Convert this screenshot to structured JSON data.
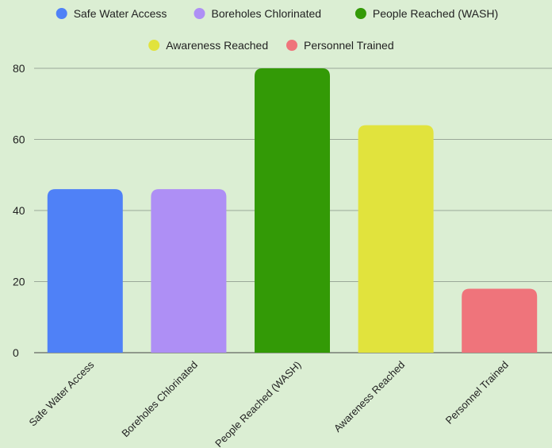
{
  "chart_data": {
    "type": "bar",
    "categories": [
      "Safe Water Access",
      "Boreholes Chlorinated",
      "People Reached (WASH)",
      "Awareness Reached",
      "Personnel Trained"
    ],
    "values": [
      46,
      46,
      80,
      64,
      18
    ],
    "colors": [
      "#4f81f7",
      "#ae8ff5",
      "#339a06",
      "#e1e33d",
      "#ef747b"
    ],
    "legend": [
      {
        "label": "Safe Water Access",
        "color": "#4f81f7"
      },
      {
        "label": "Boreholes Chlorinated",
        "color": "#ae8ff5"
      },
      {
        "label": "People Reached (WASH)",
        "color": "#339a06"
      },
      {
        "label": "Awareness Reached",
        "color": "#e1e33d"
      },
      {
        "label": "Personnel Trained",
        "color": "#ef747b"
      }
    ],
    "legend_position": "top",
    "yticks": [
      0,
      20,
      40,
      60,
      80
    ],
    "ylim": [
      0,
      80
    ],
    "grid": true,
    "title": "",
    "xlabel": "",
    "ylabel": ""
  }
}
